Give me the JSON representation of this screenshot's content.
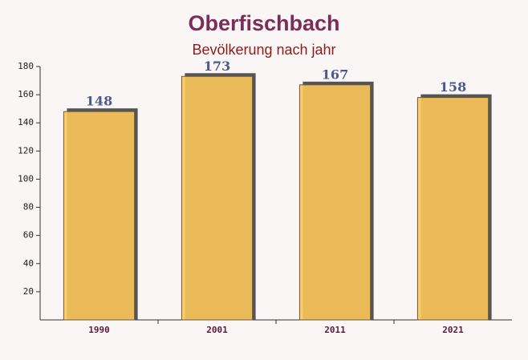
{
  "chart_data": {
    "type": "bar",
    "title": "Oberfischbach",
    "subtitle": "Bevölkerung nach jahr",
    "categories": [
      "1990",
      "2001",
      "2011",
      "2021"
    ],
    "values": [
      148,
      173,
      167,
      158
    ],
    "color": "#fdc65a",
    "ylim": [
      0,
      180
    ],
    "yticks": [
      20,
      40,
      60,
      80,
      100,
      120,
      140,
      160,
      180
    ],
    "grid": false
  }
}
